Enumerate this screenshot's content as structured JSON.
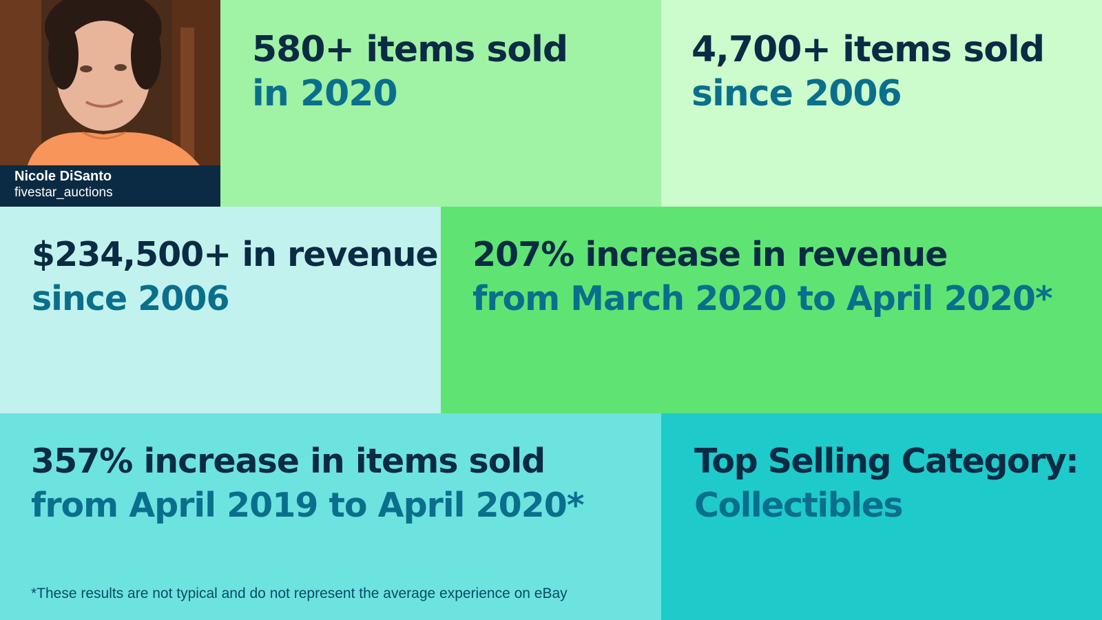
{
  "profile": {
    "name": "Nicole DiSanto",
    "handle": "fivestar_auctions"
  },
  "stats": [
    {
      "headline": "580+ items sold",
      "detail": "in 2020"
    },
    {
      "headline": "4,700+ items sold",
      "detail": "since 2006"
    },
    {
      "headline": "$234,500+ in revenue",
      "detail": "since 2006"
    },
    {
      "headline": "207% increase in revenue",
      "detail": "from March 2020 to April 2020*"
    },
    {
      "headline": "357% increase in items sold",
      "detail": "from April 2019 to April 2020*"
    },
    {
      "headline": "Top Selling Category:",
      "detail": "Collectibles"
    }
  ],
  "footnote": "*These results are not typical and do not represent the average experience on eBay",
  "colors": {
    "navy": "#0b2b44",
    "teal_text": "#0a6f8c",
    "tile_light_green": "#a0f2a4",
    "tile_pale_green": "#ccfbcc",
    "tile_pale_cyan": "#c2f2ed",
    "tile_green": "#5fe473",
    "tile_cyan": "#6de3e0",
    "tile_teal": "#1fcacb"
  }
}
